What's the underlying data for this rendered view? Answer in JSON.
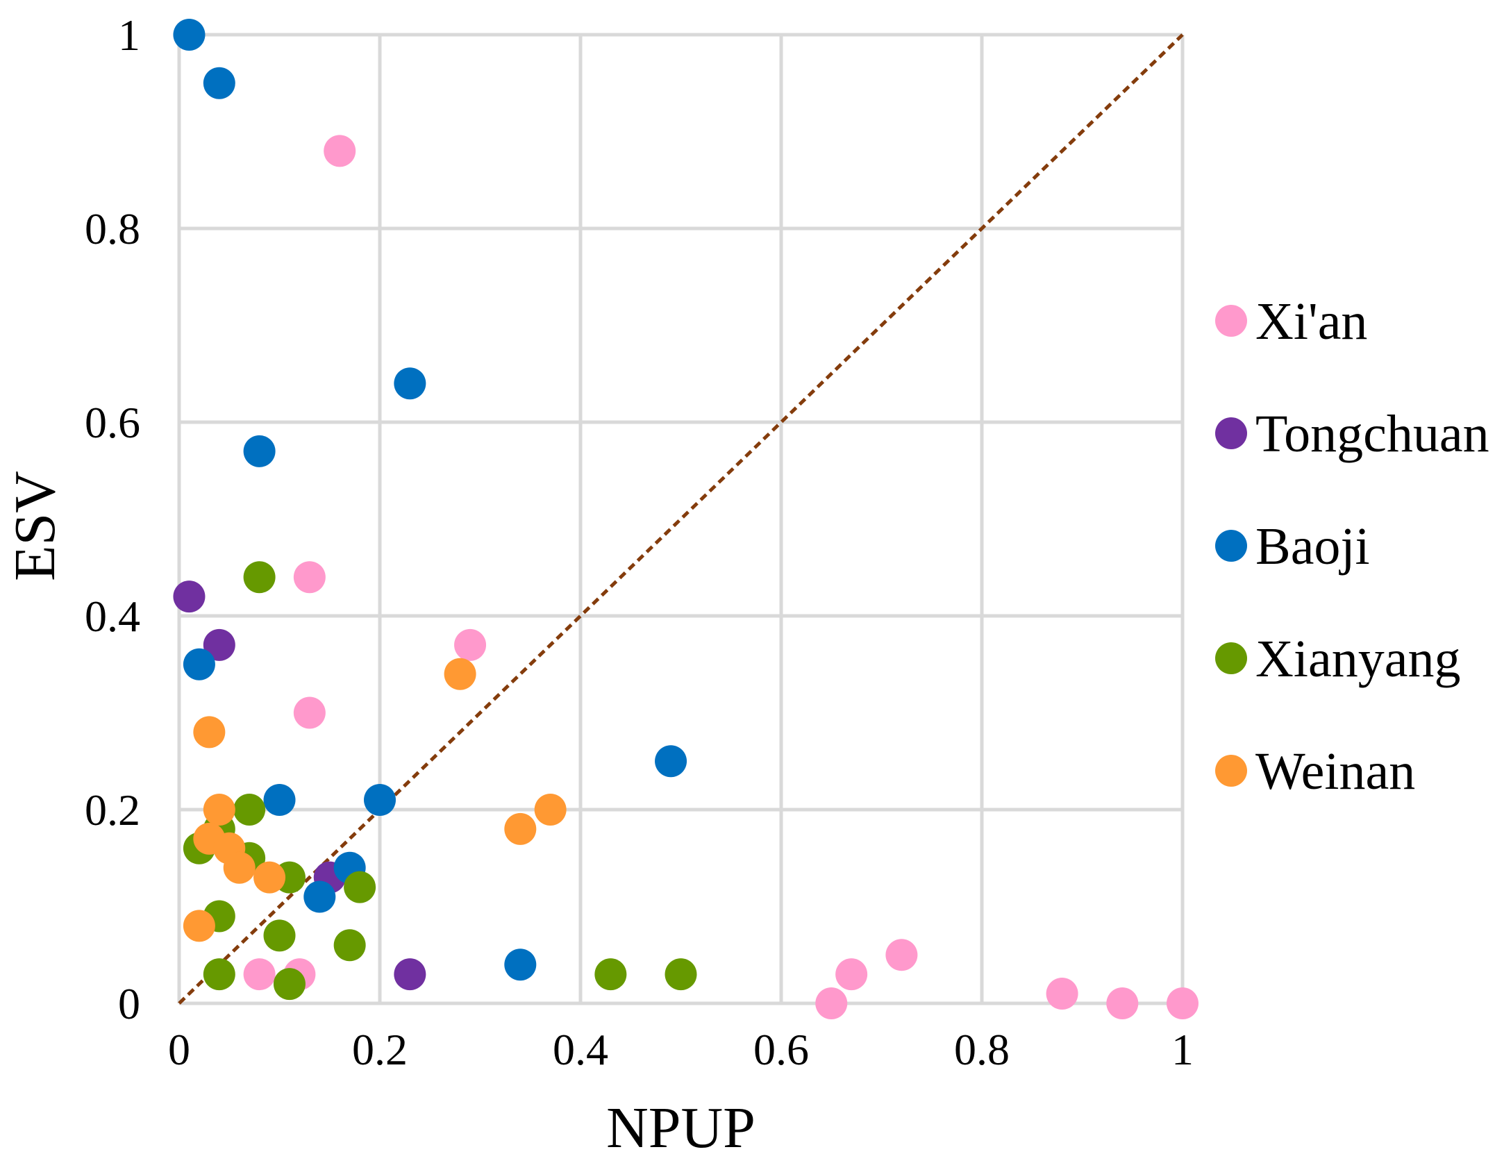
{
  "chart_data": {
    "type": "scatter",
    "title": "",
    "xlabel": "NPUP",
    "ylabel": "ESV",
    "xlim": [
      0,
      1
    ],
    "ylim": [
      0,
      1
    ],
    "grid": true,
    "legend_position": "right",
    "x_ticks": [
      "0",
      "0.2",
      "0.4",
      "0.6",
      "0.8",
      "1"
    ],
    "y_ticks": [
      "0",
      "0.2",
      "0.4",
      "0.6",
      "0.8",
      "1"
    ],
    "reference_line": {
      "from": [
        0,
        0
      ],
      "to": [
        1,
        1
      ],
      "style": "dashed",
      "color": "#843C0C"
    },
    "series": [
      {
        "name": "Xi'an",
        "color": "#FF99CC",
        "points": [
          [
            0.16,
            0.88
          ],
          [
            0.13,
            0.44
          ],
          [
            0.29,
            0.37
          ],
          [
            0.13,
            0.3
          ],
          [
            0.12,
            0.03
          ],
          [
            0.08,
            0.03
          ],
          [
            0.65,
            0.0
          ],
          [
            0.67,
            0.03
          ],
          [
            0.72,
            0.05
          ],
          [
            0.88,
            0.01
          ],
          [
            0.94,
            0.0
          ],
          [
            1.0,
            0.0
          ]
        ]
      },
      {
        "name": "Tongchuan",
        "color": "#7030A0",
        "points": [
          [
            0.01,
            0.42
          ],
          [
            0.04,
            0.37
          ],
          [
            0.15,
            0.13
          ],
          [
            0.23,
            0.03
          ]
        ]
      },
      {
        "name": "Baoji",
        "color": "#0070C0",
        "points": [
          [
            0.01,
            1.0
          ],
          [
            0.04,
            0.95
          ],
          [
            0.23,
            0.64
          ],
          [
            0.08,
            0.57
          ],
          [
            0.02,
            0.35
          ],
          [
            0.1,
            0.21
          ],
          [
            0.2,
            0.21
          ],
          [
            0.17,
            0.14
          ],
          [
            0.14,
            0.11
          ],
          [
            0.34,
            0.04
          ],
          [
            0.49,
            0.25
          ]
        ]
      },
      {
        "name": "Xianyang",
        "color": "#669900",
        "points": [
          [
            0.08,
            0.44
          ],
          [
            0.07,
            0.2
          ],
          [
            0.02,
            0.16
          ],
          [
            0.04,
            0.18
          ],
          [
            0.07,
            0.15
          ],
          [
            0.11,
            0.13
          ],
          [
            0.18,
            0.12
          ],
          [
            0.04,
            0.09
          ],
          [
            0.1,
            0.07
          ],
          [
            0.17,
            0.06
          ],
          [
            0.04,
            0.03
          ],
          [
            0.11,
            0.02
          ],
          [
            0.43,
            0.03
          ],
          [
            0.5,
            0.03
          ]
        ]
      },
      {
        "name": "Weinan",
        "color": "#FF9933",
        "points": [
          [
            0.28,
            0.34
          ],
          [
            0.03,
            0.28
          ],
          [
            0.04,
            0.2
          ],
          [
            0.03,
            0.17
          ],
          [
            0.05,
            0.16
          ],
          [
            0.06,
            0.14
          ],
          [
            0.09,
            0.13
          ],
          [
            0.02,
            0.08
          ],
          [
            0.34,
            0.18
          ],
          [
            0.37,
            0.2
          ]
        ]
      }
    ]
  }
}
